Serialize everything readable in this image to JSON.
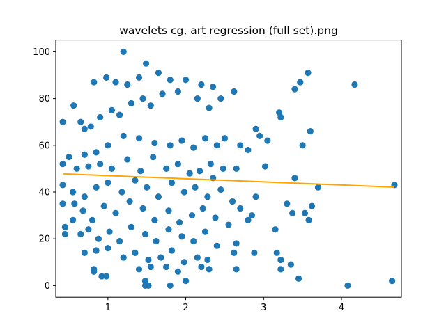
{
  "chart_data": {
    "type": "scatter",
    "title": "wavelets cg, art regression (full set).png",
    "xlabel": "",
    "ylabel": "",
    "xlim": [
      0.33,
      4.77
    ],
    "ylim": [
      -5,
      105
    ],
    "x_ticks": [
      1,
      2,
      3,
      4
    ],
    "y_ticks": [
      0,
      20,
      40,
      60,
      80,
      100
    ],
    "grid": false,
    "legend": "none",
    "colors": {
      "points": "#1f77b4",
      "fit_line": "#ffa500",
      "axes": "#000000"
    },
    "regression_line": {
      "x": [
        0.42,
        4.68
      ],
      "y": [
        47.8,
        42.1
      ]
    },
    "series": [
      {
        "points": [
          [
            1.2,
            100
          ],
          [
            1.49,
            95
          ],
          [
            1.25,
            86
          ],
          [
            1.4,
            89
          ],
          [
            1.1,
            87
          ],
          [
            0.98,
            89
          ],
          [
            0.82,
            87
          ],
          [
            1.65,
            91
          ],
          [
            1.8,
            88
          ],
          [
            2.0,
            88
          ],
          [
            2.2,
            86
          ],
          [
            2.35,
            85
          ],
          [
            2.62,
            83
          ],
          [
            3.57,
            91
          ],
          [
            3.47,
            87
          ],
          [
            3.4,
            84
          ],
          [
            4.17,
            86
          ],
          [
            0.56,
            77
          ],
          [
            0.65,
            70
          ],
          [
            0.42,
            70
          ],
          [
            0.7,
            67
          ],
          [
            0.78,
            68
          ],
          [
            0.9,
            72
          ],
          [
            1.05,
            75
          ],
          [
            1.15,
            73
          ],
          [
            1.3,
            78
          ],
          [
            1.45,
            80
          ],
          [
            1.55,
            77
          ],
          [
            1.7,
            82
          ],
          [
            1.9,
            83
          ],
          [
            2.15,
            80
          ],
          [
            2.3,
            76
          ],
          [
            2.45,
            80
          ],
          [
            3.2,
            74
          ],
          [
            3.22,
            72
          ],
          [
            2.9,
            67
          ],
          [
            2.95,
            64
          ],
          [
            3.05,
            62
          ],
          [
            3.6,
            66
          ],
          [
            3.5,
            60
          ],
          [
            2.7,
            60
          ],
          [
            2.8,
            58
          ],
          [
            2.5,
            63
          ],
          [
            2.4,
            60
          ],
          [
            2.25,
            63
          ],
          [
            2.1,
            59
          ],
          [
            1.95,
            62
          ],
          [
            1.8,
            60
          ],
          [
            1.6,
            61
          ],
          [
            1.4,
            63
          ],
          [
            1.2,
            64
          ],
          [
            1.0,
            60
          ],
          [
            0.85,
            57
          ],
          [
            0.7,
            56
          ],
          [
            0.5,
            55
          ],
          [
            0.42,
            52
          ],
          [
            0.6,
            50
          ],
          [
            0.75,
            51
          ],
          [
            0.9,
            52
          ],
          [
            1.05,
            50
          ],
          [
            1.25,
            54
          ],
          [
            1.42,
            49
          ],
          [
            1.58,
            55
          ],
          [
            1.75,
            50
          ],
          [
            1.9,
            52
          ],
          [
            2.05,
            48
          ],
          [
            2.18,
            49
          ],
          [
            2.32,
            52
          ],
          [
            2.48,
            50
          ],
          [
            2.35,
            46
          ],
          [
            2.65,
            50
          ],
          [
            3.02,
            51
          ],
          [
            3.4,
            46
          ],
          [
            3.7,
            42
          ],
          [
            4.68,
            43
          ],
          [
            0.42,
            43
          ],
          [
            0.55,
            40
          ],
          [
            0.7,
            38
          ],
          [
            0.85,
            42
          ],
          [
            1.0,
            44
          ],
          [
            1.18,
            40
          ],
          [
            1.35,
            45
          ],
          [
            1.5,
            42
          ],
          [
            1.65,
            38
          ],
          [
            1.82,
            44
          ],
          [
            1.98,
            40
          ],
          [
            2.12,
            42
          ],
          [
            2.28,
            38
          ],
          [
            2.45,
            41
          ],
          [
            2.6,
            36
          ],
          [
            2.7,
            33
          ],
          [
            2.8,
            28
          ],
          [
            2.85,
            30
          ],
          [
            2.9,
            38
          ],
          [
            3.15,
            24
          ],
          [
            3.3,
            35
          ],
          [
            3.37,
            31
          ],
          [
            3.53,
            31
          ],
          [
            3.62,
            34
          ],
          [
            3.58,
            28
          ],
          [
            0.42,
            35
          ],
          [
            0.57,
            35
          ],
          [
            0.68,
            32
          ],
          [
            0.8,
            28
          ],
          [
            0.95,
            34
          ],
          [
            1.1,
            31
          ],
          [
            1.28,
            36
          ],
          [
            1.45,
            33
          ],
          [
            1.6,
            28
          ],
          [
            1.78,
            32
          ],
          [
            1.92,
            27
          ],
          [
            2.08,
            30
          ],
          [
            2.22,
            33
          ],
          [
            2.38,
            29
          ],
          [
            2.55,
            26
          ],
          [
            0.45,
            25
          ],
          [
            0.55,
            28
          ],
          [
            0.65,
            22
          ],
          [
            0.75,
            24
          ],
          [
            0.88,
            20
          ],
          [
            1.02,
            23
          ],
          [
            1.15,
            19
          ],
          [
            1.3,
            25
          ],
          [
            1.48,
            22
          ],
          [
            1.62,
            19
          ],
          [
            1.78,
            24
          ],
          [
            1.95,
            21
          ],
          [
            2.1,
            19
          ],
          [
            2.25,
            23
          ],
          [
            2.4,
            17
          ],
          [
            2.65,
            18
          ],
          [
            2.62,
            14
          ],
          [
            2.88,
            14
          ],
          [
            3.17,
            14
          ],
          [
            0.45,
            22
          ],
          [
            0.7,
            14
          ],
          [
            0.85,
            15
          ],
          [
            1.0,
            16
          ],
          [
            1.2,
            12
          ],
          [
            1.35,
            14
          ],
          [
            1.52,
            11
          ],
          [
            1.68,
            12
          ],
          [
            1.82,
            15
          ],
          [
            1.98,
            10
          ],
          [
            2.15,
            12
          ],
          [
            2.28,
            11
          ],
          [
            3.22,
            11
          ],
          [
            0.82,
            7
          ],
          [
            0.82,
            6
          ],
          [
            0.92,
            4
          ],
          [
            0.98,
            4
          ],
          [
            1.4,
            7
          ],
          [
            1.55,
            8
          ],
          [
            1.75,
            8
          ],
          [
            1.9,
            6
          ],
          [
            2.0,
            2
          ],
          [
            2.2,
            8
          ],
          [
            2.3,
            7
          ],
          [
            2.65,
            7
          ],
          [
            3.22,
            7
          ],
          [
            3.35,
            9
          ],
          [
            3.45,
            3
          ],
          [
            1.48,
            2
          ],
          [
            1.48,
            0
          ],
          [
            1.52,
            0
          ],
          [
            1.8,
            0
          ],
          [
            4.08,
            0
          ],
          [
            4.65,
            2
          ]
        ]
      }
    ]
  }
}
